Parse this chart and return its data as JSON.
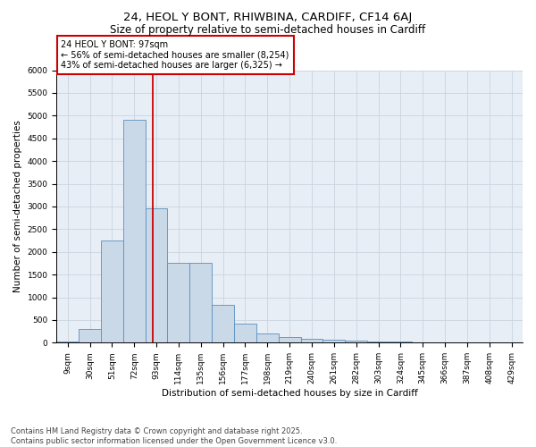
{
  "title_line1": "24, HEOL Y BONT, RHIWBINA, CARDIFF, CF14 6AJ",
  "title_line2": "Size of property relative to semi-detached houses in Cardiff",
  "xlabel": "Distribution of semi-detached houses by size in Cardiff",
  "ylabel": "Number of semi-detached properties",
  "categories": [
    "9sqm",
    "30sqm",
    "51sqm",
    "72sqm",
    "93sqm",
    "114sqm",
    "135sqm",
    "156sqm",
    "177sqm",
    "198sqm",
    "219sqm",
    "240sqm",
    "261sqm",
    "282sqm",
    "303sqm",
    "324sqm",
    "345sqm",
    "366sqm",
    "387sqm",
    "408sqm",
    "429sqm"
  ],
  "values": [
    30,
    300,
    2250,
    4900,
    2950,
    1750,
    1750,
    825,
    425,
    200,
    125,
    90,
    60,
    55,
    30,
    20,
    10,
    5,
    3,
    2,
    1
  ],
  "bar_color": "#c9d9e8",
  "bar_edge_color": "#5a8fc0",
  "annotation_box_text": "24 HEOL Y BONT: 97sqm\n← 56% of semi-detached houses are smaller (8,254)\n43% of semi-detached houses are larger (6,325) →",
  "annotation_box_color": "#ffffff",
  "annotation_box_edge_color": "#cc0000",
  "vline_color": "#cc0000",
  "ylim_max": 6000,
  "yticks": [
    0,
    500,
    1000,
    1500,
    2000,
    2500,
    3000,
    3500,
    4000,
    4500,
    5000,
    5500,
    6000
  ],
  "grid_color": "#c8d4e0",
  "bg_color": "#e8eef5",
  "footer_line1": "Contains HM Land Registry data © Crown copyright and database right 2025.",
  "footer_line2": "Contains public sector information licensed under the Open Government Licence v3.0.",
  "title_fontsize": 9.5,
  "subtitle_fontsize": 8.5,
  "axis_label_fontsize": 7.5,
  "tick_fontsize": 6.5,
  "annotation_fontsize": 7,
  "footer_fontsize": 6
}
